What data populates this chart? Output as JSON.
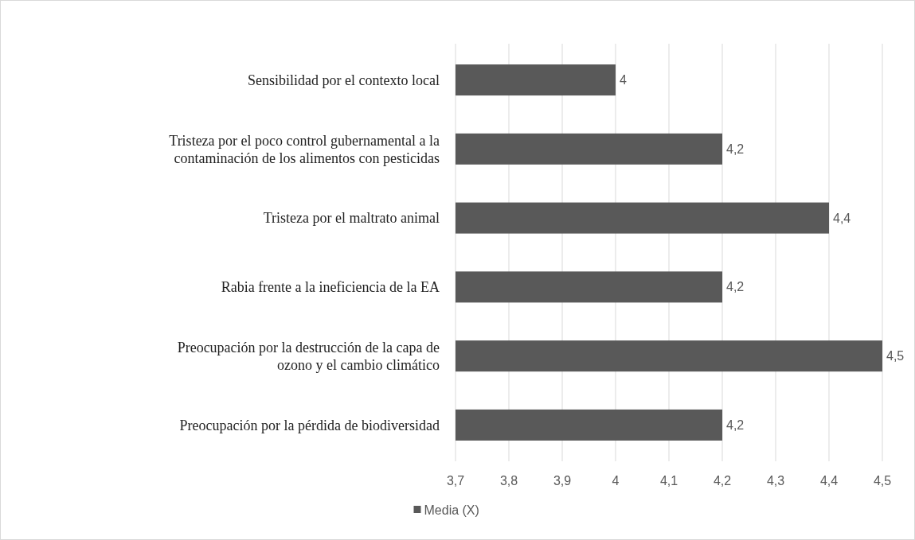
{
  "chart_data": {
    "type": "bar",
    "orientation": "horizontal",
    "categories": [
      "Sensibilidad por el contexto local",
      "Tristeza por el poco control gubernamental a la contaminación de los alimentos con pesticidas",
      "Tristeza por el maltrato animal",
      "Rabia frente a la ineficiencia de la EA",
      "Preocupación por la destrucción de la capa de ozono y el cambio climático",
      "Preocupación por la pérdida de biodiversidad"
    ],
    "series": [
      {
        "name": "Media (X)",
        "color": "#595959",
        "values": [
          4,
          4.2,
          4.4,
          4.2,
          4.5,
          4.2
        ],
        "value_labels": [
          "4",
          "4,2",
          "4,4",
          "4,2",
          "4,5",
          "4,2"
        ]
      }
    ],
    "xlim": [
      3.7,
      4.5
    ],
    "xticks": [
      {
        "value": 3.7,
        "label": "3,7"
      },
      {
        "value": 3.8,
        "label": "3,8"
      },
      {
        "value": 3.9,
        "label": "3,9"
      },
      {
        "value": 4,
        "label": "4"
      },
      {
        "value": 4.1,
        "label": "4,1"
      },
      {
        "value": 4.2,
        "label": "4,2"
      },
      {
        "value": 4.3,
        "label": "4,3"
      },
      {
        "value": 4.4,
        "label": "4,4"
      },
      {
        "value": 4.5,
        "label": "4,5"
      }
    ],
    "grid": "x",
    "legend": "bottom"
  }
}
